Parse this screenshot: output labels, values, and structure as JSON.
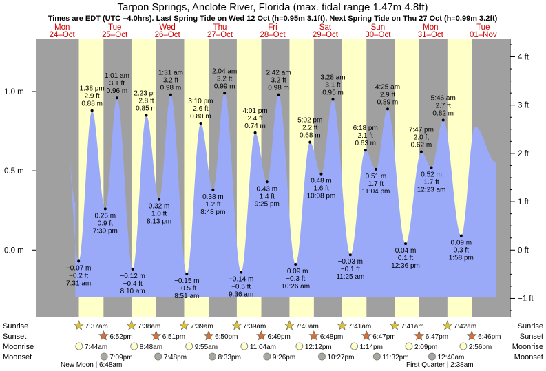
{
  "chart_data": {
    "type": "area",
    "title": "Tarpon Springs, Anclote River, Florida (max. tidal range 1.47m 4.8ft)",
    "subtitle": "Times are EDT (UTC –4.0hrs). Last Spring Tide on Wed 12 Oct (h=0.95m 3.1ft). Next Spring Tide on Thu 27 Oct (h=0.99m 3.2ft)",
    "days": [
      {
        "dow": "Mon",
        "date": "24–Oct"
      },
      {
        "dow": "Tue",
        "date": "25–Oct"
      },
      {
        "dow": "Wed",
        "date": "26–Oct"
      },
      {
        "dow": "Thu",
        "date": "27–Oct"
      },
      {
        "dow": "Fri",
        "date": "28–Oct"
      },
      {
        "dow": "Sat",
        "date": "29–Oct"
      },
      {
        "dow": "Sun",
        "date": "30–Oct"
      },
      {
        "dow": "Mon",
        "date": "31–Oct"
      },
      {
        "dow": "Tue",
        "date": "01–Nov"
      }
    ],
    "y_left": {
      "unit": "m",
      "ticks": [
        {
          "v": 0.0,
          "label": "0.0 m"
        },
        {
          "v": 0.5,
          "label": "0.5 m"
        },
        {
          "v": 1.0,
          "label": "1.0 m"
        }
      ]
    },
    "y_right": {
      "unit": "ft",
      "ticks": [
        {
          "v": -1,
          "label": "−1 ft"
        },
        {
          "v": 0,
          "label": "0 ft"
        },
        {
          "v": 1,
          "label": "1 ft"
        },
        {
          "v": 2,
          "label": "2 ft"
        },
        {
          "v": 3,
          "label": "3 ft"
        },
        {
          "v": 4,
          "label": "4 ft"
        }
      ]
    },
    "ylim_m": [
      -0.42,
      1.33
    ],
    "xlim_hours": [
      -12,
      204
    ],
    "data_start_hour": 6,
    "data_end_hour": 198,
    "extremes": [
      {
        "hour": 7.52,
        "m": "−0.07 m",
        "ft": "−0.2 ft",
        "time": "7:31 am",
        "v": -0.07,
        "type": "low"
      },
      {
        "hour": 13.63,
        "m": "0.88 m",
        "ft": "2.9 ft",
        "time": "1:38 pm",
        "v": 0.88,
        "type": "high"
      },
      {
        "hour": 19.65,
        "m": "0.26 m",
        "ft": "0.9 ft",
        "time": "7:39 pm",
        "v": 0.26,
        "type": "low"
      },
      {
        "hour": 25.02,
        "m": "0.96 m",
        "ft": "3.1 ft",
        "time": "1:01 am",
        "v": 0.96,
        "type": "high"
      },
      {
        "hour": 32.17,
        "m": "−0.12 m",
        "ft": "−0.4 ft",
        "time": "8:10 am",
        "v": -0.12,
        "type": "low"
      },
      {
        "hour": 38.38,
        "m": "0.85 m",
        "ft": "2.8 ft",
        "time": "2:23 pm",
        "v": 0.85,
        "type": "high"
      },
      {
        "hour": 44.22,
        "m": "0.32 m",
        "ft": "1.0 ft",
        "time": "8:13 pm",
        "v": 0.32,
        "type": "low"
      },
      {
        "hour": 49.52,
        "m": "0.98 m",
        "ft": "3.2 ft",
        "time": "1:31 am",
        "v": 0.98,
        "type": "high"
      },
      {
        "hour": 56.85,
        "m": "−0.15 m",
        "ft": "−0.5 ft",
        "time": "8:51 am",
        "v": -0.15,
        "type": "low"
      },
      {
        "hour": 63.17,
        "m": "0.80 m",
        "ft": "2.6 ft",
        "time": "3:10 pm",
        "v": 0.8,
        "type": "high"
      },
      {
        "hour": 68.8,
        "m": "0.38 m",
        "ft": "1.2 ft",
        "time": "8:48 pm",
        "v": 0.38,
        "type": "low"
      },
      {
        "hour": 74.07,
        "m": "0.99 m",
        "ft": "3.2 ft",
        "time": "2:04 am",
        "v": 0.99,
        "type": "high"
      },
      {
        "hour": 81.6,
        "m": "−0.14 m",
        "ft": "−0.5 ft",
        "time": "9:36 am",
        "v": -0.14,
        "type": "low"
      },
      {
        "hour": 88.02,
        "m": "0.74 m",
        "ft": "2.4 ft",
        "time": "4:01 pm",
        "v": 0.74,
        "type": "high"
      },
      {
        "hour": 93.42,
        "m": "0.43 m",
        "ft": "1.4 ft",
        "time": "9:25 pm",
        "v": 0.43,
        "type": "low"
      },
      {
        "hour": 98.7,
        "m": "0.98 m",
        "ft": "3.2 ft",
        "time": "2:42 am",
        "v": 0.98,
        "type": "high"
      },
      {
        "hour": 106.43,
        "m": "−0.09 m",
        "ft": "−0.3 ft",
        "time": "10:26 am",
        "v": -0.09,
        "type": "low"
      },
      {
        "hour": 113.03,
        "m": "0.68 m",
        "ft": "2.2 ft",
        "time": "5:02 pm",
        "v": 0.68,
        "type": "high"
      },
      {
        "hour": 118.13,
        "m": "0.48 m",
        "ft": "1.6 ft",
        "time": "10:08 pm",
        "v": 0.48,
        "type": "low"
      },
      {
        "hour": 123.47,
        "m": "0.95 m",
        "ft": "3.1 ft",
        "time": "3:28 am",
        "v": 0.95,
        "type": "high"
      },
      {
        "hour": 131.42,
        "m": "−0.03 m",
        "ft": "−0.1 ft",
        "time": "11:25 am",
        "v": -0.03,
        "type": "low"
      },
      {
        "hour": 138.3,
        "m": "0.63 m",
        "ft": "2.1 ft",
        "time": "6:18 pm",
        "v": 0.63,
        "type": "high"
      },
      {
        "hour": 143.07,
        "m": "0.51 m",
        "ft": "1.7 ft",
        "time": "11:04 pm",
        "v": 0.51,
        "type": "low"
      },
      {
        "hour": 148.42,
        "m": "0.89 m",
        "ft": "2.9 ft",
        "time": "4:25 am",
        "v": 0.89,
        "type": "high"
      },
      {
        "hour": 156.6,
        "m": "0.04 m",
        "ft": "0.1 ft",
        "time": "12:36 pm",
        "v": 0.04,
        "type": "low"
      },
      {
        "hour": 163.78,
        "m": "0.62 m",
        "ft": "2.0 ft",
        "time": "7:47 pm",
        "v": 0.62,
        "type": "high"
      },
      {
        "hour": 168.38,
        "m": "0.52 m",
        "ft": "1.7 ft",
        "time": "12:23 am",
        "v": 0.52,
        "type": "low"
      },
      {
        "hour": 173.77,
        "m": "0.82 m",
        "ft": "2.7 ft",
        "time": "5:46 am",
        "v": 0.82,
        "type": "high"
      },
      {
        "hour": 181.97,
        "m": "0.09 m",
        "ft": "0.3 ft",
        "time": "1:58 pm",
        "v": 0.09,
        "type": "low"
      }
    ],
    "boundary_levels": {
      "start": 0.3,
      "end": 0.55,
      "pre_high_hour": 0.9,
      "pre_high": 0.92
    },
    "sun": [
      {
        "rise": "7:37am",
        "set": "6:52pm",
        "rise_h": 7.62,
        "set_h": 18.87
      },
      {
        "rise": "7:38am",
        "set": "6:51pm",
        "rise_h": 7.63,
        "set_h": 18.85
      },
      {
        "rise": "7:39am",
        "set": "6:50pm",
        "rise_h": 7.65,
        "set_h": 18.83
      },
      {
        "rise": "7:39am",
        "set": "6:49pm",
        "rise_h": 7.65,
        "set_h": 18.82
      },
      {
        "rise": "7:40am",
        "set": "6:48pm",
        "rise_h": 7.67,
        "set_h": 18.8
      },
      {
        "rise": "7:41am",
        "set": "6:47pm",
        "rise_h": 7.68,
        "set_h": 18.78
      },
      {
        "rise": "7:41am",
        "set": "6:47pm",
        "rise_h": 7.68,
        "set_h": 18.78
      },
      {
        "rise": "7:42am",
        "set": "6:46pm",
        "rise_h": 7.7,
        "set_h": 18.77
      }
    ],
    "moonrise": [
      {
        "time": "7:44am",
        "hour": 7.73
      },
      {
        "time": "8:48am",
        "hour": 32.8
      },
      {
        "time": "9:55am",
        "hour": 57.92
      },
      {
        "time": "11:04am",
        "hour": 83.07
      },
      {
        "time": "12:12pm",
        "hour": 108.2
      },
      {
        "time": "1:14pm",
        "hour": 133.23
      },
      {
        "time": "2:09pm",
        "hour": 158.15
      },
      {
        "time": "2:56pm",
        "hour": 182.93
      }
    ],
    "moonset": [
      {
        "time": "7:09pm",
        "hour": 19.15
      },
      {
        "time": "7:48pm",
        "hour": 43.8
      },
      {
        "time": "8:33pm",
        "hour": 68.55
      },
      {
        "time": "9:26pm",
        "hour": 93.43
      },
      {
        "time": "10:27pm",
        "hour": 118.45
      },
      {
        "time": "11:32pm",
        "hour": 143.53
      },
      {
        "time": "12:40am",
        "hour": 168.67
      }
    ],
    "row_labels": {
      "sunrise": "Sunrise",
      "sunset": "Sunset",
      "moonrise": "Moonrise",
      "moonset": "Moonset"
    },
    "moon_phases": {
      "new": "New Moon | 6:48am",
      "first": "First Quarter | 2:38am"
    },
    "colors": {
      "day": "#ffffc8",
      "night": "#a0a0a0",
      "tide": "#9aaaf8",
      "title": "#000000",
      "weekday": "#cc0000",
      "sunrise_star": "#d8c040",
      "sunset_star": "#e07030",
      "moonrise_disc": "#ffffc8",
      "moonset_disc": "#a8a8a0"
    }
  }
}
